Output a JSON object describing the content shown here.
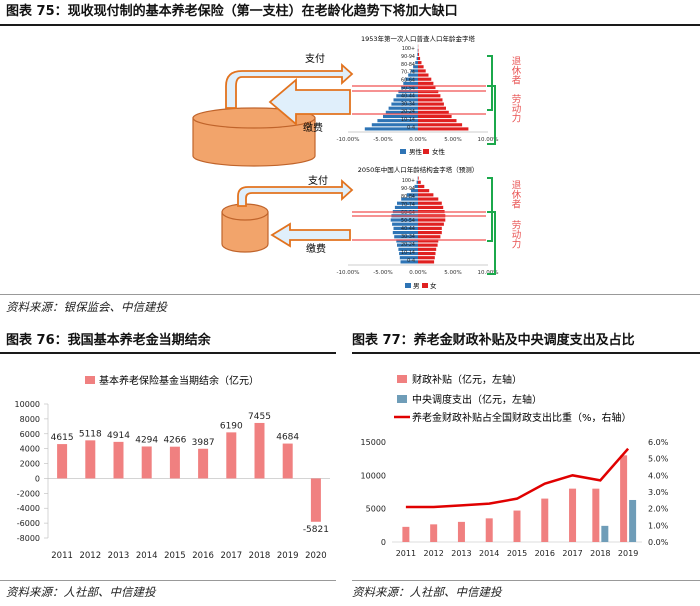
{
  "fig75": {
    "title": "图表 75：现收现付制的基本养老保险（第一支柱）在老龄化趋势下将加大缺口",
    "source": "资料来源：银保监会、中信建投",
    "pyramid1": {
      "title": "1953年第一次人口普查人口年龄金字塔",
      "age_labels": [
        "100+",
        "90-94",
        "80-84",
        "70-74",
        "60-64",
        "50-54",
        "40-44",
        "30-34",
        "20-24",
        "10-14",
        "0-4"
      ],
      "x_ticks": [
        "-10.00%",
        "-5.00%",
        "0.00%",
        "5.00%",
        "10.00%"
      ],
      "legend": [
        "男性",
        "女性"
      ],
      "male": [
        0.02,
        0.05,
        0.1,
        0.2,
        0.4,
        0.7,
        1.0,
        1.4,
        1.8,
        2.1,
        2.4,
        2.8,
        3.1,
        3.5,
        3.8,
        4.2,
        4.6,
        5.0,
        5.8,
        6.6,
        7.6
      ],
      "female": [
        0.03,
        0.07,
        0.15,
        0.3,
        0.5,
        0.8,
        1.1,
        1.5,
        1.9,
        2.2,
        2.5,
        2.9,
        3.2,
        3.5,
        3.7,
        4.0,
        4.4,
        4.8,
        5.5,
        6.3,
        7.2
      ]
    },
    "pyramid2": {
      "title": "2050年中国人口年龄结构金字塔（预测）",
      "age_labels": [
        "100+",
        "90-94",
        "80-84",
        "70-74",
        "60-64",
        "50-54",
        "40-44",
        "30-34",
        "20-24",
        "10-14",
        "0-4"
      ],
      "x_ticks": [
        "-10.00%",
        "-5.00%",
        "0.00%",
        "5.00%",
        "10.00%"
      ],
      "legend": [
        "男",
        "女"
      ],
      "male": [
        0.05,
        0.2,
        0.5,
        1.0,
        1.6,
        2.4,
        3.0,
        3.3,
        3.6,
        3.8,
        3.9,
        3.7,
        3.5,
        3.6,
        3.4,
        3.1,
        3.0,
        2.8,
        2.7,
        2.6,
        2.5
      ],
      "female": [
        0.1,
        0.4,
        0.9,
        1.6,
        2.2,
        2.9,
        3.4,
        3.6,
        3.8,
        3.9,
        3.9,
        3.7,
        3.4,
        3.4,
        3.2,
        2.9,
        2.8,
        2.6,
        2.5,
        2.4,
        2.3
      ]
    },
    "arrow_top": "支付",
    "arrow_bottom": "缴费",
    "bracket_top": "退休者",
    "bracket_bottom": "劳动力",
    "colors": {
      "tank": "#F2A46B",
      "tank_edge": "#C0642B",
      "arrow": "#E0EFFB",
      "arrow_edge": "#E2731F",
      "male": "#2E74B5",
      "female": "#E02020",
      "line": "#F05050",
      "bracket": "#1BA84B"
    }
  },
  "fig76": {
    "title": "图表 76：我国基本养老金当期结余",
    "source": "资料来源：人社部、中信建投",
    "chart_data": {
      "type": "bar",
      "categories": [
        "2011",
        "2012",
        "2013",
        "2014",
        "2015",
        "2016",
        "2017",
        "2018",
        "2019",
        "2020"
      ],
      "series": [
        {
          "name": "基本养老保险基金当期结余（亿元）",
          "values": [
            4615,
            5118,
            4914,
            4294,
            4266,
            3987,
            6190,
            7455,
            4684,
            -5821
          ]
        }
      ],
      "data_labels": [
        "4615",
        "5118",
        "4914",
        "4294",
        "4266",
        "3987",
        "6190",
        "7455",
        "4684",
        "-5821"
      ],
      "y_ticks": [
        "10000",
        "8000",
        "6000",
        "4000",
        "2000",
        "0",
        "-2000",
        "-4000",
        "-6000",
        "-8000"
      ],
      "ylim": [
        -8000,
        10000
      ],
      "bar_color": "#F08080"
    }
  },
  "fig77": {
    "title": "图表 77：养老金财政补贴及中央调度支出及占比",
    "source": "资料来源：人社部、中信建投",
    "chart_data": {
      "type": "bar",
      "categories": [
        "2011",
        "2012",
        "2013",
        "2014",
        "2015",
        "2016",
        "2017",
        "2018",
        "2019"
      ],
      "series": [
        {
          "name": "财政补贴（亿元，左轴）",
          "values": [
            2272,
            2648,
            3019,
            3548,
            4716,
            6511,
            8004,
            8000,
            13000
          ],
          "color": "#F08080"
        },
        {
          "name": "中央调度支出（亿元，左轴）",
          "values": [
            null,
            null,
            null,
            null,
            null,
            null,
            null,
            2422,
            6303
          ],
          "color": "#6F9DB8"
        },
        {
          "name": "养老金财政补贴占全国财政支出比重（%，右轴）",
          "values": [
            2.1,
            2.1,
            2.2,
            2.3,
            2.6,
            3.5,
            4.0,
            3.7,
            5.6
          ],
          "color": "#E00000",
          "type": "line"
        }
      ],
      "y_left_ticks": [
        "15000",
        "10000",
        "5000",
        "0"
      ],
      "y_right_ticks": [
        "6.0%",
        "5.0%",
        "4.0%",
        "3.0%",
        "2.0%",
        "1.0%",
        "0.0%"
      ],
      "ylim_left": [
        0,
        15000
      ],
      "ylim_right": [
        0,
        6
      ]
    }
  }
}
